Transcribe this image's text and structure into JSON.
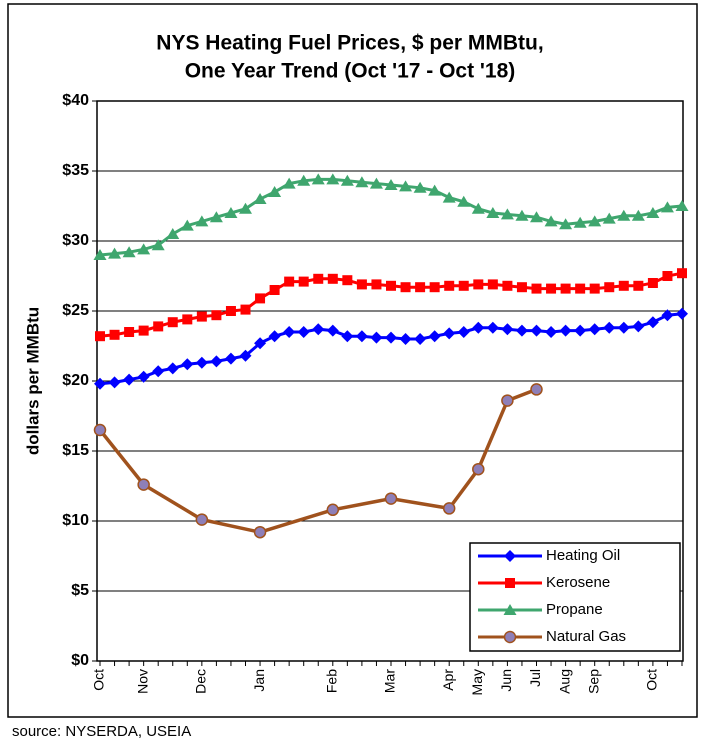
{
  "chart_data": {
    "type": "line",
    "title": [
      "NYS Heating Fuel Prices, $ per MMBtu,",
      "One Year Trend (Oct '17 - Oct '18)"
    ],
    "ylabel": "dollars per MMBtu",
    "source": "source: NYSERDA,  USEIA",
    "categories": [
      "Oct",
      null,
      null,
      "Nov",
      null,
      null,
      null,
      "Dec",
      null,
      null,
      null,
      "Jan",
      null,
      null,
      null,
      null,
      "Feb",
      null,
      null,
      null,
      "Mar",
      null,
      null,
      null,
      "Apr",
      null,
      "May",
      null,
      "Jun",
      null,
      "Jul",
      null,
      "Aug",
      null,
      "Sep",
      null,
      null,
      null,
      "Oct",
      null,
      null
    ],
    "ylim": [
      0,
      40
    ],
    "yticks": [
      {
        "value": 0,
        "label": "$0"
      },
      {
        "value": 5,
        "label": "$5"
      },
      {
        "value": 10,
        "label": "$10"
      },
      {
        "value": 15,
        "label": "$15"
      },
      {
        "value": 20,
        "label": "$20"
      },
      {
        "value": 25,
        "label": "$25"
      },
      {
        "value": 30,
        "label": "$30"
      },
      {
        "value": 35,
        "label": "$35"
      },
      {
        "value": 40,
        "label": "$40"
      }
    ],
    "grid": true,
    "legend": "lower right",
    "series": [
      {
        "name": "Heating Oil",
        "color": "#0000ff",
        "marker": "diamond",
        "values": [
          19.8,
          19.9,
          20.1,
          20.3,
          20.7,
          20.9,
          21.2,
          21.3,
          21.4,
          21.6,
          21.8,
          22.7,
          23.2,
          23.5,
          23.5,
          23.7,
          23.6,
          23.2,
          23.2,
          23.1,
          23.1,
          23.0,
          23.0,
          23.2,
          23.4,
          23.5,
          23.8,
          23.8,
          23.7,
          23.6,
          23.6,
          23.5,
          23.6,
          23.6,
          23.7,
          23.8,
          23.8,
          23.9,
          24.2,
          24.7,
          24.8
        ]
      },
      {
        "name": "Kerosene",
        "color": "#ff0000",
        "marker": "square",
        "values": [
          23.2,
          23.3,
          23.5,
          23.6,
          23.9,
          24.2,
          24.4,
          24.6,
          24.7,
          25.0,
          25.1,
          25.9,
          26.5,
          27.1,
          27.1,
          27.3,
          27.3,
          27.2,
          26.9,
          26.9,
          26.8,
          26.7,
          26.7,
          26.7,
          26.8,
          26.8,
          26.9,
          26.9,
          26.8,
          26.7,
          26.6,
          26.6,
          26.6,
          26.6,
          26.6,
          26.7,
          26.8,
          26.8,
          27.0,
          27.5,
          27.7
        ]
      },
      {
        "name": "Propane",
        "color": "#3fa66e",
        "marker": "triangle",
        "values": [
          29.0,
          29.1,
          29.2,
          29.4,
          29.7,
          30.5,
          31.1,
          31.4,
          31.7,
          32.0,
          32.3,
          33.0,
          33.5,
          34.1,
          34.3,
          34.4,
          34.4,
          34.3,
          34.2,
          34.1,
          34.0,
          33.9,
          33.8,
          33.6,
          33.1,
          32.8,
          32.3,
          32.0,
          31.9,
          31.8,
          31.7,
          31.4,
          31.2,
          31.3,
          31.4,
          31.6,
          31.8,
          31.8,
          32.0,
          32.4,
          32.5
        ]
      },
      {
        "name": "Natural Gas",
        "color": "#a0521d",
        "marker": "circle",
        "marker_color": "#8e7fb8",
        "connect_gaps": true,
        "values": [
          16.5,
          null,
          null,
          12.6,
          null,
          null,
          null,
          10.1,
          null,
          null,
          null,
          9.2,
          null,
          null,
          null,
          null,
          10.8,
          null,
          null,
          null,
          11.6,
          null,
          null,
          null,
          10.9,
          null,
          13.7,
          null,
          18.6,
          null,
          19.4,
          null,
          null,
          null,
          null,
          null,
          null,
          null,
          null,
          null,
          null
        ]
      }
    ]
  }
}
